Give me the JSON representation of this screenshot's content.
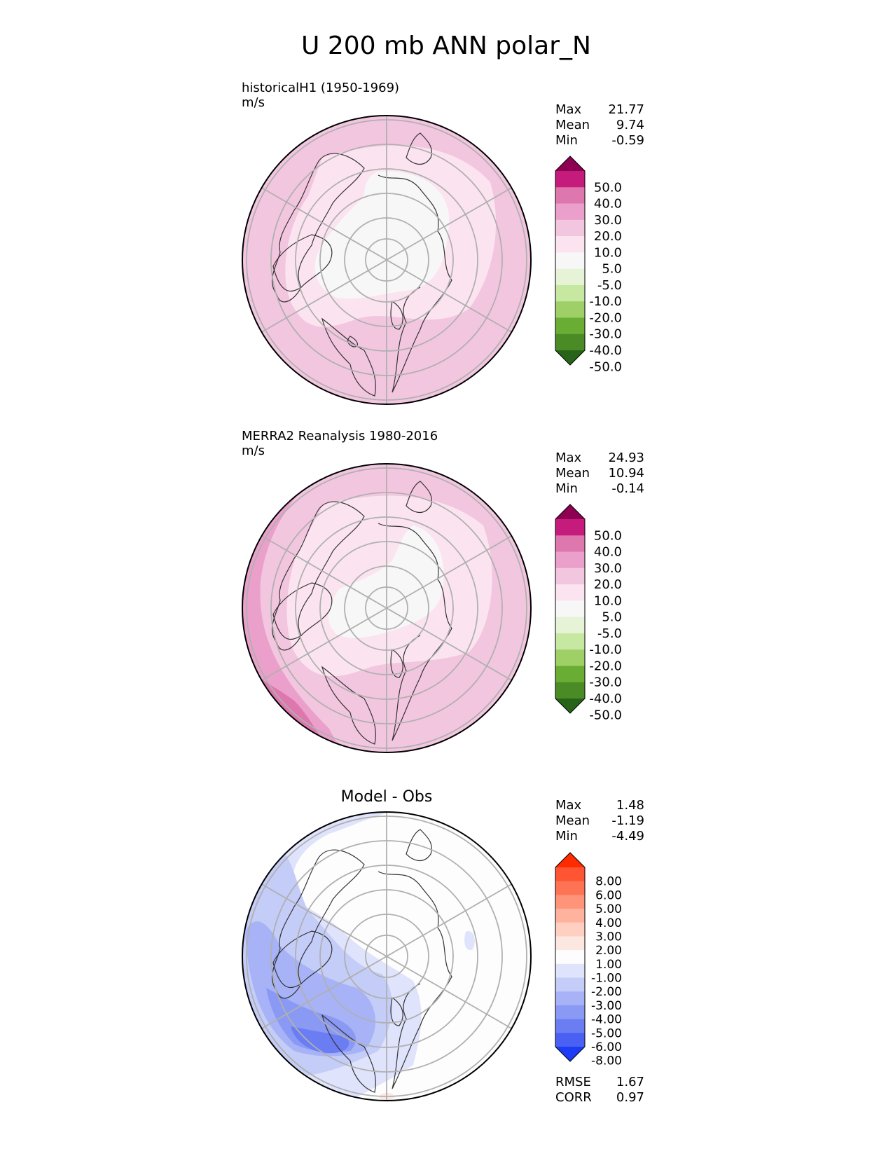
{
  "chart_data": {
    "type": "polar-contour",
    "title": "U 200 mb ANN polar_N",
    "panels": [
      {
        "id": "test",
        "heading": "historicalH1 (1950-1969)",
        "units": "m/s",
        "stats": {
          "labels": [
            "Max",
            "Mean",
            "Min"
          ],
          "values": [
            "21.77",
            "9.74",
            "-0.59"
          ]
        },
        "colorbar": {
          "levels": [
            "50.0",
            "40.0",
            "30.0",
            "20.0",
            "10.0",
            "5.0",
            "-5.0",
            "-10.0",
            "-20.0",
            "-30.0",
            "-40.0",
            "-50.0"
          ],
          "colors": [
            "#8e0152",
            "#c51b7d",
            "#de77ae",
            "#eba0cb",
            "#f3c6e0",
            "#fbe4f0",
            "#f7f7f7",
            "#e6f3d6",
            "#c7e8a0",
            "#9fd067",
            "#6aad35",
            "#4a8b26",
            "#276419"
          ]
        },
        "field_values": {
          "max": 21.77,
          "mean": 9.74,
          "min": -0.59
        }
      },
      {
        "id": "reference",
        "heading": "MERRA2 Reanalysis 1980-2016",
        "units": "m/s",
        "stats": {
          "labels": [
            "Max",
            "Mean",
            "Min"
          ],
          "values": [
            "24.93",
            "10.94",
            "-0.14"
          ]
        },
        "colorbar": {
          "levels": [
            "50.0",
            "40.0",
            "30.0",
            "20.0",
            "10.0",
            "5.0",
            "-5.0",
            "-10.0",
            "-20.0",
            "-30.0",
            "-40.0",
            "-50.0"
          ],
          "colors": [
            "#8e0152",
            "#c51b7d",
            "#de77ae",
            "#eba0cb",
            "#f3c6e0",
            "#fbe4f0",
            "#f7f7f7",
            "#e6f3d6",
            "#c7e8a0",
            "#9fd067",
            "#6aad35",
            "#4a8b26",
            "#276419"
          ]
        },
        "field_values": {
          "max": 24.93,
          "mean": 10.94,
          "min": -0.14
        }
      },
      {
        "id": "diff",
        "heading": "Model - Obs",
        "units": "",
        "stats": {
          "labels": [
            "Max",
            "Mean",
            "Min"
          ],
          "values": [
            "1.48",
            "-1.19",
            "-4.49"
          ]
        },
        "colorbar": {
          "levels": [
            "8.00",
            "6.00",
            "5.00",
            "4.00",
            "3.00",
            "2.00",
            "1.00",
            "-1.00",
            "-2.00",
            "-3.00",
            "-4.00",
            "-5.00",
            "-6.00",
            "-8.00"
          ],
          "colors": [
            "#ff2a00",
            "#ff5533",
            "#ff7355",
            "#ff9478",
            "#ffb39e",
            "#ffcfc2",
            "#fde7e1",
            "#fdfdfd",
            "#dfe3fb",
            "#c4ccf8",
            "#a7b3f6",
            "#8a99f4",
            "#6a7df3",
            "#4a60f3",
            "#1e3cf5"
          ]
        },
        "extra_stats": {
          "labels": [
            "RMSE",
            "CORR"
          ],
          "values": [
            "1.67",
            "0.97"
          ]
        },
        "field_values": {
          "max": 1.48,
          "mean": -1.19,
          "min": -4.49,
          "rmse": 1.67,
          "corr": 0.97
        }
      }
    ]
  }
}
